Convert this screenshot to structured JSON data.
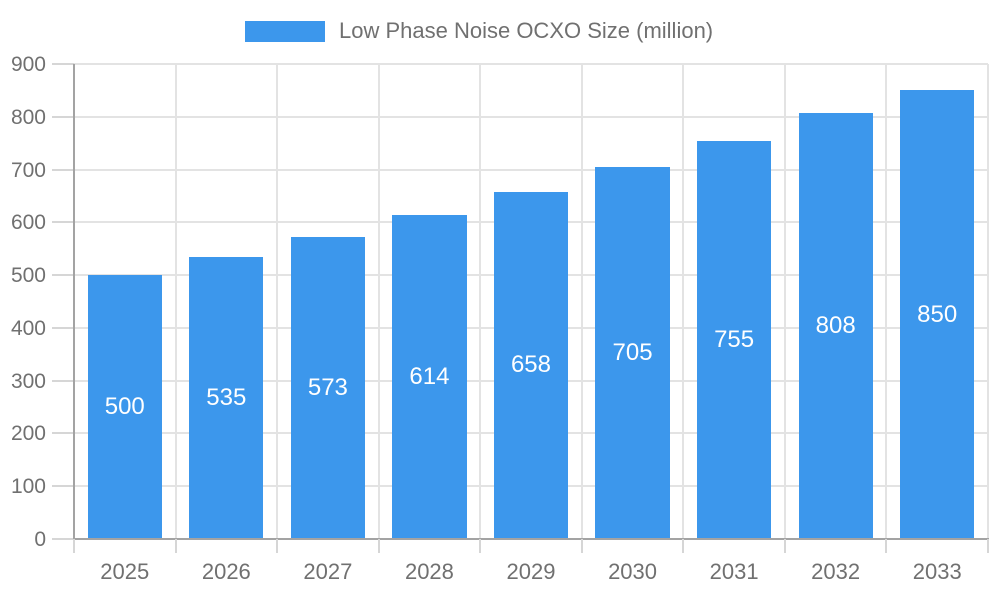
{
  "legend": {
    "label": "Low Phase Noise OCXO Size (million)"
  },
  "chart_data": {
    "type": "bar",
    "title": "",
    "categories": [
      "2025",
      "2026",
      "2027",
      "2028",
      "2029",
      "2030",
      "2031",
      "2032",
      "2033"
    ],
    "series": [
      {
        "name": "Low Phase Noise OCXO Size (million)",
        "values": [
          500,
          535,
          573,
          614,
          658,
          705,
          755,
          808,
          850
        ]
      }
    ],
    "bar_labels": [
      "500",
      "535",
      "573",
      "614",
      "658",
      "705",
      "755",
      "808",
      "850"
    ],
    "xlabel": "",
    "ylabel": "",
    "ylim": [
      0,
      900
    ],
    "yticks": [
      0,
      100,
      200,
      300,
      400,
      500,
      600,
      700,
      800,
      900
    ],
    "grid": true,
    "legend_position": "top",
    "colors": {
      "bar": "#3C97EC",
      "bar_label": "#FFFFFF",
      "axis_text": "#707070",
      "gridline": "#E3E3E3",
      "axis_line": "#A3A3A3",
      "tick": "#D6D6D6"
    }
  }
}
